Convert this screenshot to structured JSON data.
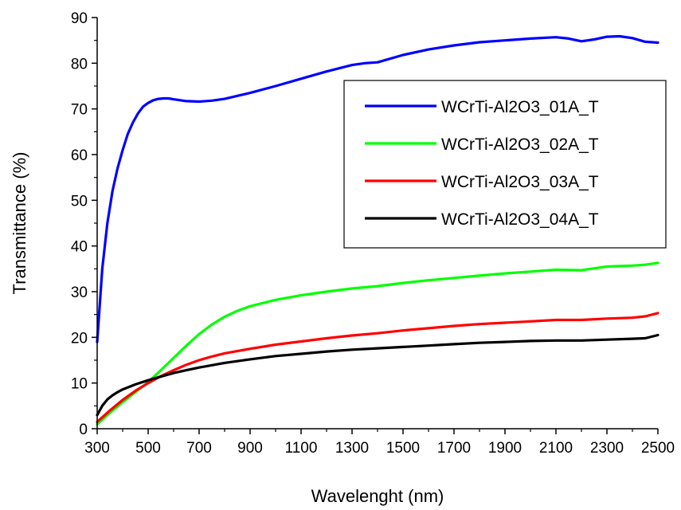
{
  "chart_data": {
    "type": "line",
    "title": "",
    "xlabel": "Wavelenght (nm)",
    "ylabel": "Transmittance (%)",
    "xlim": [
      300,
      2500
    ],
    "ylim": [
      0,
      90
    ],
    "xticks": [
      300,
      500,
      700,
      900,
      1100,
      1300,
      1500,
      1700,
      1900,
      2100,
      2300,
      2500
    ],
    "yticks": [
      0,
      10,
      20,
      30,
      40,
      50,
      60,
      70,
      80,
      90
    ],
    "grid": false,
    "legend_position": "top-right",
    "series": [
      {
        "name": "WCrTi-Al2O3_01A_T",
        "color": "#0000ff",
        "x": [
          300,
          320,
          340,
          360,
          380,
          400,
          420,
          440,
          460,
          480,
          500,
          520,
          540,
          560,
          580,
          600,
          650,
          700,
          750,
          800,
          900,
          1000,
          1100,
          1200,
          1300,
          1350,
          1400,
          1500,
          1600,
          1700,
          1800,
          1900,
          2000,
          2100,
          2150,
          2200,
          2250,
          2300,
          2350,
          2400,
          2450,
          2500
        ],
        "y": [
          19,
          35,
          45,
          52,
          57,
          61,
          64.5,
          67,
          69,
          70.5,
          71.3,
          71.9,
          72.2,
          72.3,
          72.3,
          72.1,
          71.7,
          71.6,
          71.8,
          72.2,
          73.5,
          75,
          76.6,
          78.2,
          79.6,
          80,
          80.2,
          81.8,
          83,
          83.9,
          84.6,
          85,
          85.4,
          85.7,
          85.4,
          84.8,
          85.2,
          85.8,
          85.9,
          85.5,
          84.7,
          84.5
        ]
      },
      {
        "name": "WCrTi-Al2O3_02A_T",
        "color": "#00ff00",
        "x": [
          300,
          350,
          400,
          450,
          500,
          550,
          600,
          650,
          700,
          750,
          800,
          850,
          900,
          1000,
          1100,
          1200,
          1300,
          1400,
          1500,
          1600,
          1700,
          1800,
          1900,
          2000,
          2100,
          2200,
          2300,
          2400,
          2450,
          2500
        ],
        "y": [
          1,
          3.5,
          5.8,
          8,
          10.2,
          12.8,
          15.5,
          18.2,
          20.7,
          22.8,
          24.5,
          25.8,
          26.8,
          28.2,
          29.2,
          30,
          30.7,
          31.2,
          31.9,
          32.5,
          33,
          33.5,
          34,
          34.4,
          34.8,
          34.7,
          35.5,
          35.7,
          35.9,
          36.3
        ]
      },
      {
        "name": "WCrTi-Al2O3_03A_T",
        "color": "#ff0000",
        "x": [
          300,
          350,
          400,
          450,
          500,
          550,
          600,
          650,
          700,
          750,
          800,
          900,
          1000,
          1100,
          1200,
          1300,
          1400,
          1500,
          1600,
          1700,
          1800,
          1900,
          2000,
          2100,
          2200,
          2300,
          2400,
          2450,
          2500
        ],
        "y": [
          1.5,
          4,
          6.3,
          8.3,
          10,
          11.5,
          12.8,
          14,
          15,
          15.8,
          16.5,
          17.5,
          18.4,
          19.1,
          19.8,
          20.4,
          20.9,
          21.5,
          22,
          22.5,
          22.9,
          23.2,
          23.5,
          23.8,
          23.8,
          24.1,
          24.3,
          24.6,
          25.3
        ]
      },
      {
        "name": "WCrTi-Al2O3_04A_T",
        "color": "#000000",
        "x": [
          300,
          320,
          340,
          360,
          380,
          400,
          450,
          500,
          550,
          600,
          650,
          700,
          800,
          900,
          1000,
          1100,
          1200,
          1300,
          1400,
          1500,
          1600,
          1700,
          1800,
          1900,
          2000,
          2100,
          2200,
          2300,
          2400,
          2450,
          2500
        ],
        "y": [
          3,
          5,
          6.4,
          7.3,
          8,
          8.6,
          9.7,
          10.6,
          11.4,
          12.2,
          12.8,
          13.4,
          14.4,
          15.2,
          15.9,
          16.4,
          16.9,
          17.3,
          17.6,
          17.9,
          18.2,
          18.5,
          18.8,
          19,
          19.2,
          19.3,
          19.3,
          19.5,
          19.7,
          19.8,
          20.5
        ]
      }
    ]
  }
}
